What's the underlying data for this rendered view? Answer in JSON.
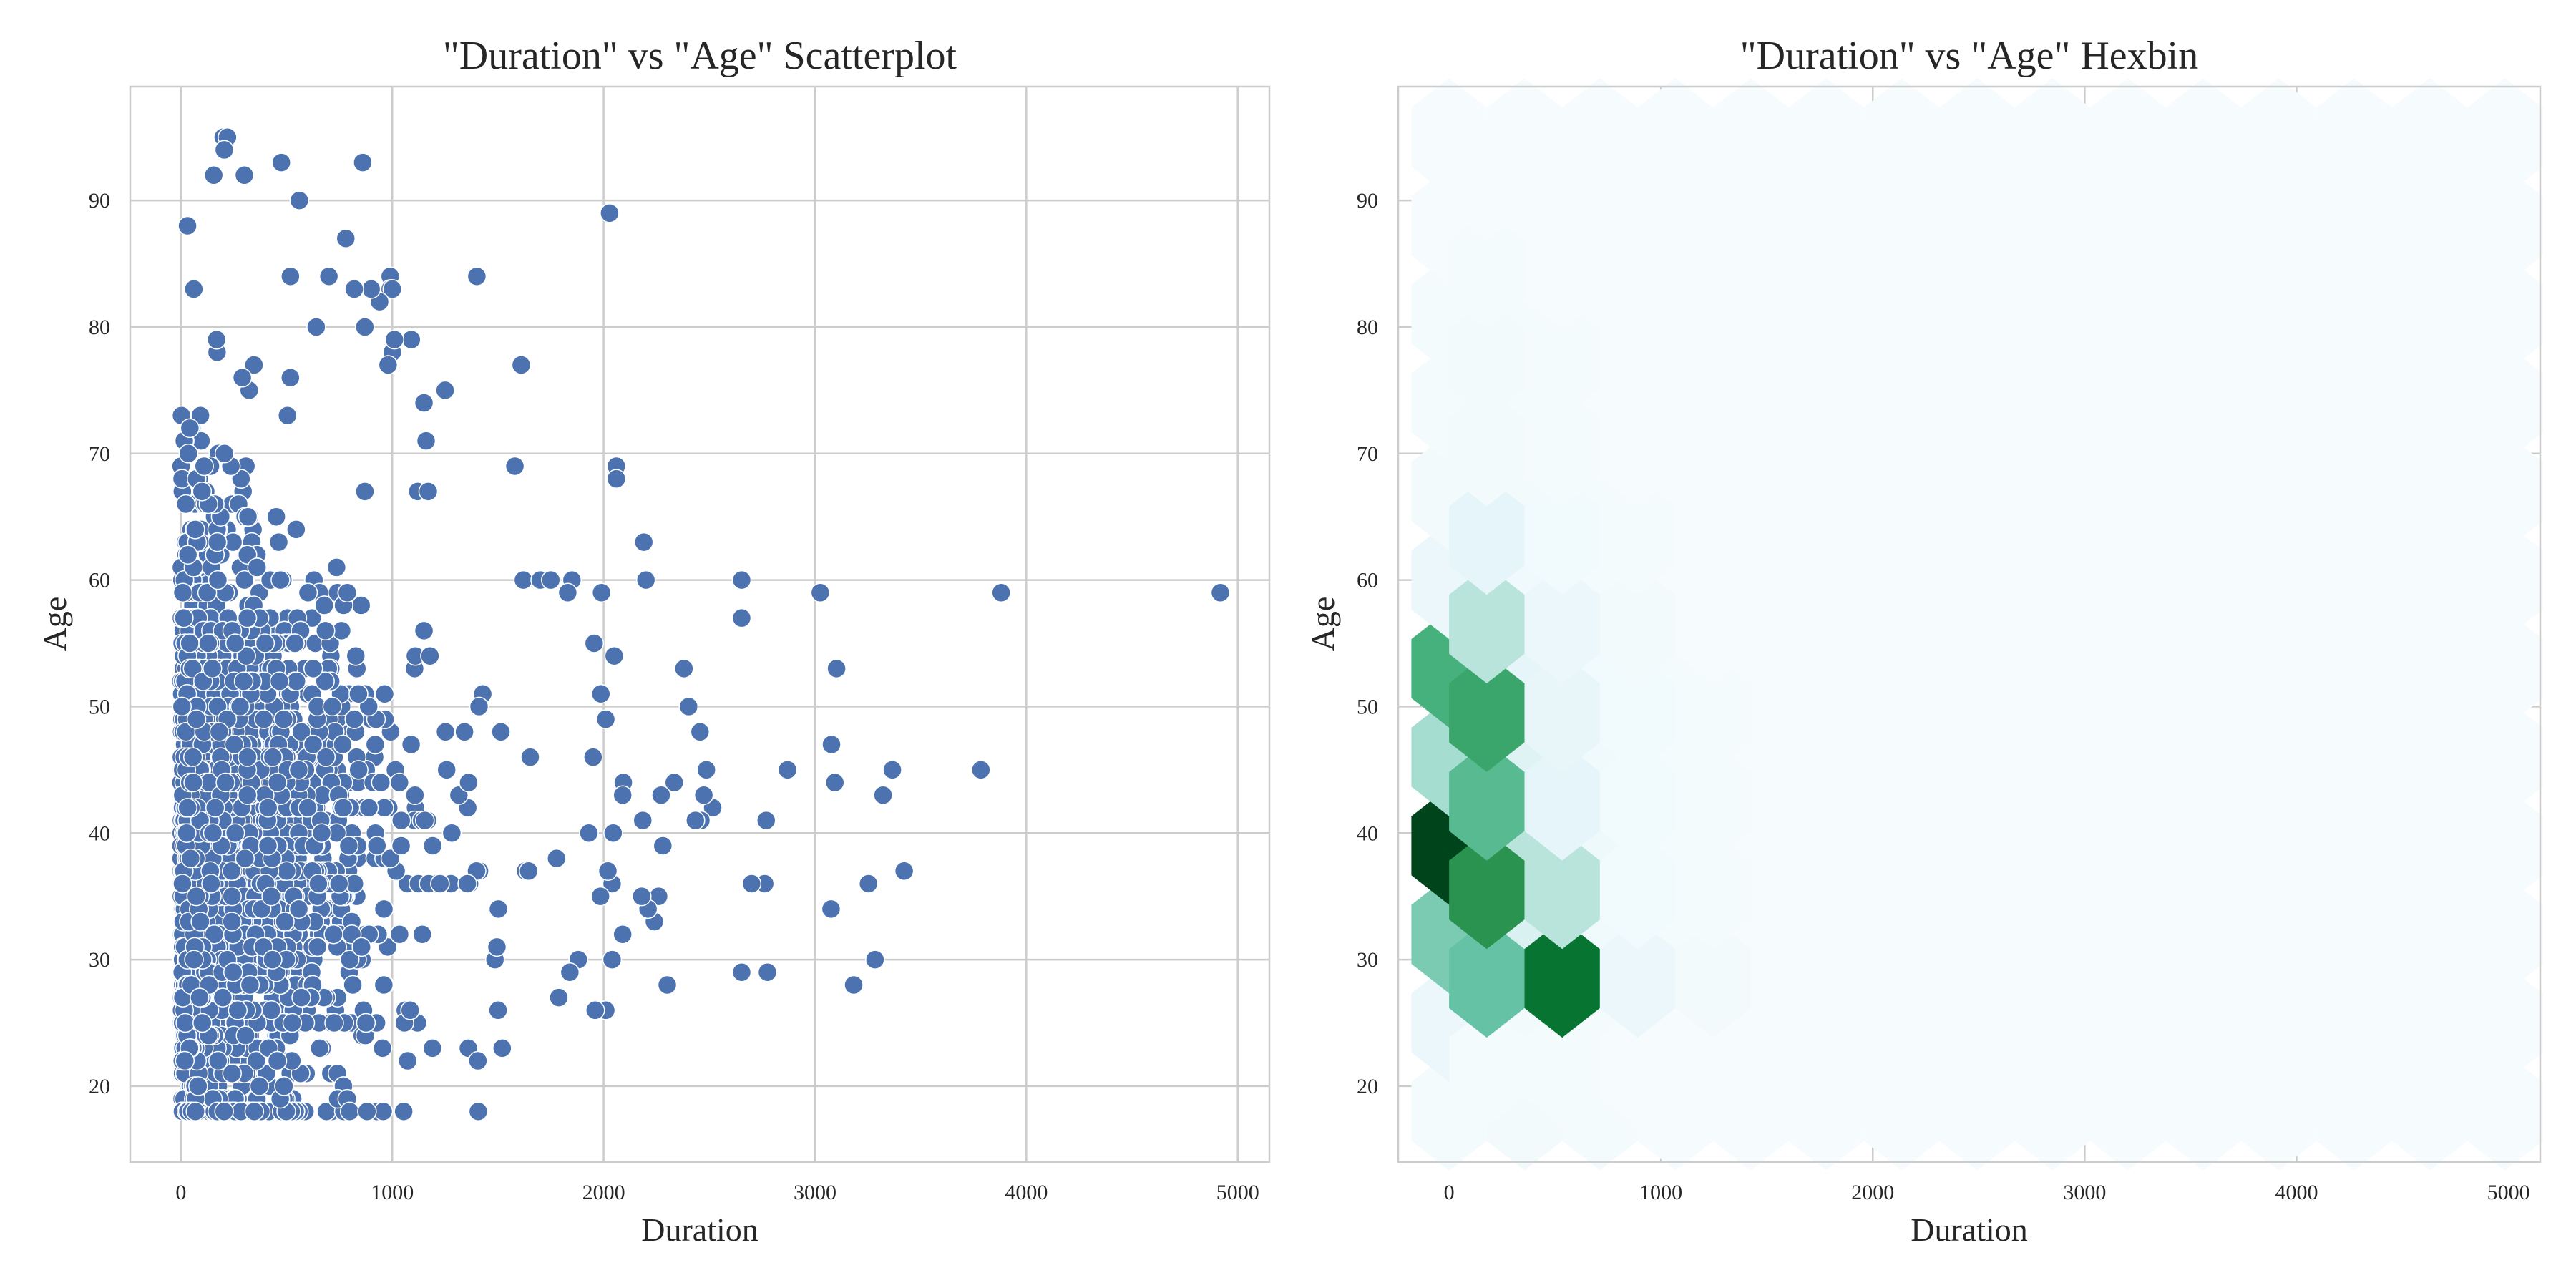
{
  "chart_data": [
    {
      "type": "scatter",
      "title": "\"Duration\" vs \"Age\" Scatterplot",
      "xlabel": "Duration",
      "ylabel": "Age",
      "xlim": [
        -240,
        5150
      ],
      "ylim": [
        14,
        99
      ],
      "xticks": [
        0,
        1000,
        2000,
        3000,
        4000,
        5000
      ],
      "yticks": [
        20,
        30,
        40,
        50,
        60,
        70,
        80,
        90
      ],
      "grid": true,
      "marker_color": "#4c72b0",
      "points": [
        [
          4918,
          59
        ],
        [
          3881,
          59
        ],
        [
          3785,
          45
        ],
        [
          3366,
          45
        ],
        [
          3322,
          43
        ],
        [
          3284,
          30
        ],
        [
          3253,
          36
        ],
        [
          3183,
          28
        ],
        [
          3422,
          37
        ],
        [
          3102,
          53
        ],
        [
          3094,
          44
        ],
        [
          3078,
          47
        ],
        [
          3076,
          34
        ],
        [
          3025,
          59
        ],
        [
          2870,
          45
        ],
        [
          2769,
          41
        ],
        [
          2775,
          29
        ],
        [
          2762,
          36
        ],
        [
          2700,
          36
        ],
        [
          2653,
          60
        ],
        [
          2653,
          57
        ],
        [
          2653,
          29
        ],
        [
          2516,
          42
        ],
        [
          2486,
          45
        ],
        [
          2474,
          43
        ],
        [
          2456,
          48
        ],
        [
          2460,
          41
        ],
        [
          2434,
          41
        ],
        [
          2402,
          50
        ],
        [
          2380,
          53
        ],
        [
          2301,
          28
        ],
        [
          2334,
          44
        ],
        [
          2280,
          39
        ],
        [
          2272,
          43
        ],
        [
          2260,
          35
        ],
        [
          2240,
          33
        ],
        [
          2210,
          34
        ],
        [
          2180,
          35
        ],
        [
          2185,
          41
        ],
        [
          2200,
          60
        ],
        [
          2190,
          63
        ],
        [
          2093,
          44
        ],
        [
          2090,
          43
        ],
        [
          2090,
          32
        ],
        [
          2060,
          69
        ],
        [
          2060,
          68
        ],
        [
          2028,
          89
        ],
        [
          2050,
          54
        ],
        [
          2045,
          40
        ],
        [
          2040,
          36
        ],
        [
          2040,
          30
        ],
        [
          2020,
          37
        ],
        [
          2010,
          49
        ],
        [
          2010,
          26
        ],
        [
          1990,
          59
        ],
        [
          1987,
          51
        ],
        [
          1985,
          35
        ],
        [
          1960,
          26
        ],
        [
          1950,
          46
        ],
        [
          1955,
          55
        ],
        [
          1850,
          60
        ],
        [
          1830,
          59
        ],
        [
          1400,
          84
        ],
        [
          1610,
          77
        ],
        [
          1580,
          69
        ],
        [
          1250,
          75
        ],
        [
          1150,
          74
        ],
        [
          1090,
          79
        ],
        [
          1160,
          71
        ],
        [
          1120,
          67
        ],
        [
          1170,
          67
        ],
        [
          1405,
          22
        ],
        [
          1520,
          23
        ],
        [
          1190,
          23
        ],
        [
          1620,
          60
        ],
        [
          1700,
          60
        ],
        [
          1750,
          60
        ],
        [
          1930,
          40
        ],
        [
          1880,
          30
        ],
        [
          1840,
          29
        ],
        [
          860,
          93
        ],
        [
          475,
          93
        ],
        [
          200,
          95
        ],
        [
          220,
          95
        ],
        [
          205,
          94
        ],
        [
          300,
          92
        ],
        [
          155,
          92
        ],
        [
          560,
          90
        ],
        [
          990,
          84
        ],
        [
          990,
          83
        ],
        [
          1000,
          83
        ],
        [
          1000,
          78
        ],
        [
          1010,
          79
        ],
        [
          980,
          77
        ],
        [
          940,
          82
        ],
        [
          900,
          83
        ],
        [
          820,
          83
        ],
        [
          870,
          80
        ],
        [
          780,
          87
        ],
        [
          700,
          84
        ],
        [
          640,
          80
        ]
      ]
    },
    {
      "type": "heatmap",
      "title": "\"Duration\" vs \"Age\"  Hexbin",
      "xlabel": "Duration",
      "ylabel": "Age",
      "xlim": [
        -240,
        5150
      ],
      "ylim": [
        14,
        99
      ],
      "xticks": [
        0,
        1000,
        2000,
        3000,
        4000,
        5000
      ],
      "yticks": [
        20,
        30,
        40,
        50,
        60,
        70,
        80,
        90
      ],
      "grid": true,
      "colormap": "BuGn",
      "hex_centers_x": [
        0,
        356,
        712,
        1068,
        1424,
        1780,
        2136,
        2492,
        2848,
        3204,
        3560,
        3916,
        4272,
        4628,
        4984
      ],
      "hex_centers_y": [
        18,
        25,
        32,
        39,
        46,
        53,
        60,
        67,
        74,
        81,
        88,
        95
      ],
      "hex_density": [
        [
          0.02,
          0.03,
          0.02,
          0.01,
          0.01,
          0.01,
          0.01,
          0.01,
          0.01,
          0.01,
          0.01,
          0.01,
          0.01,
          0.01,
          0.01
        ],
        [
          0.08,
          0.03,
          0.02,
          0.01,
          0.01,
          0.01,
          0.01,
          0.01,
          0.01,
          0.01,
          0.01,
          0.01,
          0.01,
          0.01,
          0.01
        ],
        [
          0.45,
          0.18,
          0.05,
          0.02,
          0.01,
          0.01,
          0.01,
          0.01,
          0.01,
          0.01,
          0.01,
          0.01,
          0.01,
          0.01,
          0.01
        ],
        [
          1.0,
          0.3,
          0.06,
          0.02,
          0.01,
          0.01,
          0.01,
          0.01,
          0.01,
          0.01,
          0.01,
          0.01,
          0.01,
          0.01,
          0.01
        ],
        [
          0.35,
          0.15,
          0.05,
          0.02,
          0.01,
          0.01,
          0.01,
          0.01,
          0.01,
          0.01,
          0.01,
          0.01,
          0.01,
          0.01,
          0.01
        ],
        [
          0.6,
          0.12,
          0.04,
          0.02,
          0.01,
          0.01,
          0.01,
          0.01,
          0.01,
          0.01,
          0.01,
          0.01,
          0.01,
          0.01,
          0.01
        ],
        [
          0.08,
          0.05,
          0.02,
          0.01,
          0.01,
          0.01,
          0.01,
          0.01,
          0.01,
          0.01,
          0.01,
          0.01,
          0.01,
          0.01,
          0.01
        ],
        [
          0.03,
          0.03,
          0.02,
          0.01,
          0.01,
          0.01,
          0.01,
          0.01,
          0.01,
          0.01,
          0.01,
          0.01,
          0.01,
          0.01,
          0.01
        ],
        [
          0.02,
          0.02,
          0.01,
          0.01,
          0.01,
          0.01,
          0.01,
          0.01,
          0.01,
          0.01,
          0.01,
          0.01,
          0.01,
          0.01,
          0.01
        ],
        [
          0.02,
          0.02,
          0.01,
          0.01,
          0.01,
          0.01,
          0.01,
          0.01,
          0.01,
          0.01,
          0.01,
          0.01,
          0.01,
          0.01,
          0.01
        ],
        [
          0.01,
          0.01,
          0.01,
          0.01,
          0.01,
          0.01,
          0.01,
          0.01,
          0.01,
          0.01,
          0.01,
          0.01,
          0.01,
          0.01,
          0.01
        ],
        [
          0.01,
          0.01,
          0.01,
          0.01,
          0.01,
          0.01,
          0.01,
          0.01,
          0.01,
          0.01,
          0.01,
          0.01,
          0.01,
          0.01,
          0.01
        ]
      ],
      "hex_density_offset": [
        [
          0.02,
          0.02,
          0.01,
          0.01,
          0.01,
          0.01,
          0.01,
          0.01,
          0.01,
          0.01,
          0.01,
          0.01,
          0.01,
          0.01
        ],
        [
          0.5,
          0.85,
          0.08,
          0.03,
          0.01,
          0.01,
          0.01,
          0.01,
          0.01,
          0.01,
          0.01,
          0.01,
          0.01,
          0.01
        ],
        [
          0.72,
          0.3,
          0.04,
          0.02,
          0.01,
          0.01,
          0.01,
          0.01,
          0.01,
          0.01,
          0.01,
          0.01,
          0.01,
          0.01
        ],
        [
          0.55,
          0.12,
          0.04,
          0.02,
          0.01,
          0.01,
          0.01,
          0.01,
          0.01,
          0.01,
          0.01,
          0.01,
          0.01,
          0.01
        ],
        [
          0.65,
          0.1,
          0.04,
          0.02,
          0.01,
          0.01,
          0.01,
          0.01,
          0.01,
          0.01,
          0.01,
          0.01,
          0.01,
          0.01
        ],
        [
          0.3,
          0.08,
          0.03,
          0.01,
          0.01,
          0.01,
          0.01,
          0.01,
          0.01,
          0.01,
          0.01,
          0.01,
          0.01,
          0.01
        ],
        [
          0.12,
          0.04,
          0.02,
          0.01,
          0.01,
          0.01,
          0.01,
          0.01,
          0.01,
          0.01,
          0.01,
          0.01,
          0.01,
          0.01
        ],
        [
          0.03,
          0.02,
          0.01,
          0.01,
          0.01,
          0.01,
          0.01,
          0.01,
          0.01,
          0.01,
          0.01,
          0.01,
          0.01,
          0.01
        ],
        [
          0.03,
          0.02,
          0.01,
          0.01,
          0.01,
          0.01,
          0.01,
          0.01,
          0.01,
          0.01,
          0.01,
          0.01,
          0.01,
          0.01
        ],
        [
          0.02,
          0.01,
          0.01,
          0.01,
          0.01,
          0.01,
          0.01,
          0.01,
          0.01,
          0.01,
          0.01,
          0.01,
          0.01,
          0.01
        ],
        [
          0.01,
          0.01,
          0.01,
          0.01,
          0.01,
          0.01,
          0.01,
          0.01,
          0.01,
          0.01,
          0.01,
          0.01,
          0.01,
          0.01
        ]
      ],
      "hex_centers_x_offset": [
        178,
        534,
        890,
        1246,
        1602,
        1958,
        2314,
        2670,
        3026,
        3382,
        3738,
        4094,
        4450,
        4806
      ],
      "hex_centers_y_offset": [
        21.5,
        28.5,
        35.5,
        42.5,
        49.5,
        56.5,
        63.5,
        70.5,
        77.5,
        84.5,
        91.5
      ]
    }
  ]
}
